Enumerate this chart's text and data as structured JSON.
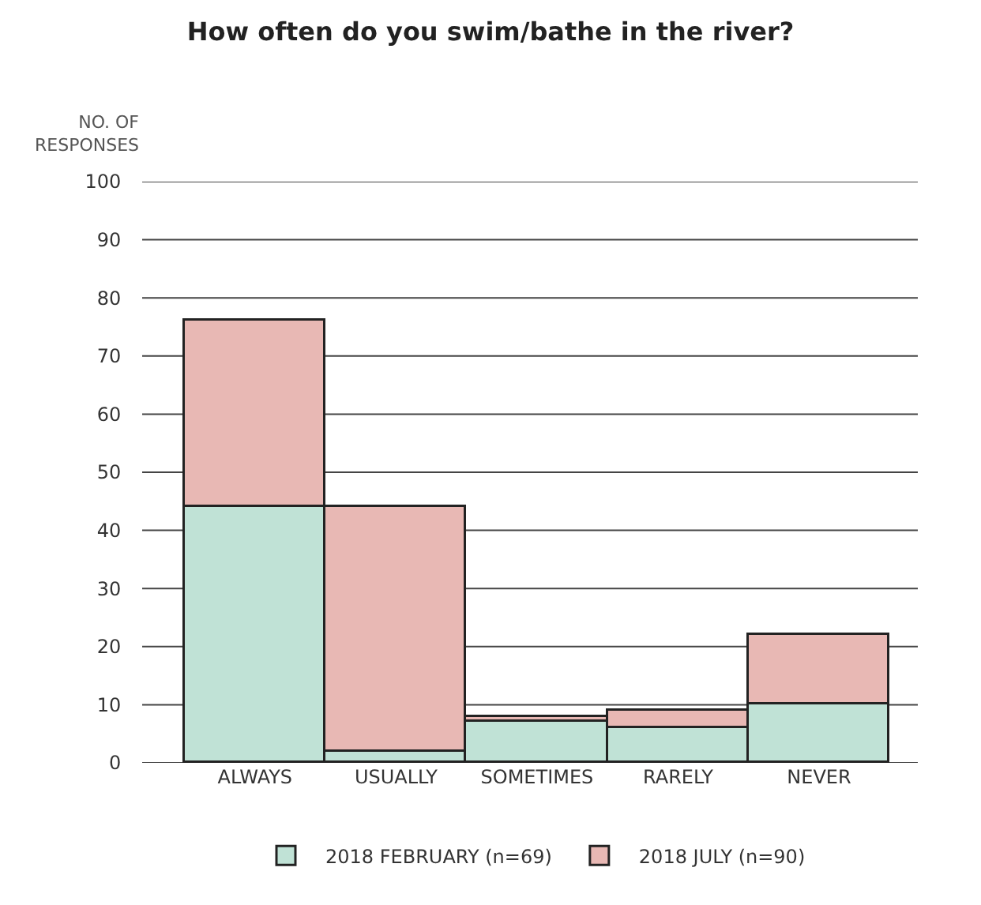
{
  "chart_data": {
    "type": "bar",
    "title": "How often do you swim/bathe in the river?",
    "ylabel": "NO. OF RESPONSES",
    "categories": [
      "ALWAYS",
      "USUALLY",
      "SOMETIMES",
      "RARELY",
      "NEVER"
    ],
    "series": [
      {
        "name": "2018 FEBRUARY (n=69)",
        "color": "#c0e2d6",
        "values": [
          44,
          2,
          7,
          6,
          10
        ]
      },
      {
        "name": "2018 JULY (n=90)",
        "color": "#e8b8b4",
        "values": [
          32,
          42,
          1,
          3,
          12
        ]
      }
    ],
    "stacked": true,
    "ylim": [
      0,
      100
    ],
    "yticks": [
      0,
      10,
      20,
      30,
      40,
      50,
      60,
      70,
      80,
      90,
      100
    ],
    "grid": "y",
    "legend": "bottom"
  }
}
